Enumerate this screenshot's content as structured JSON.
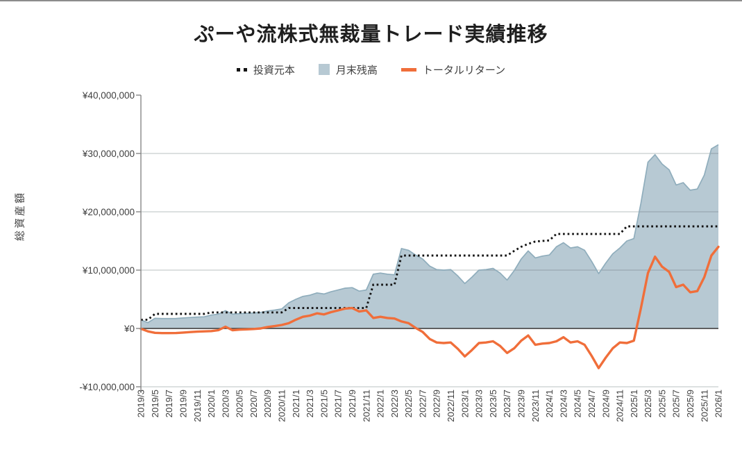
{
  "chart_data": {
    "type": "combo",
    "title": "ぷーや流株式無裁量トレード実績推移",
    "y_axis_label": "総資産額",
    "currency": "JPY",
    "ylim": [
      -10000000,
      40000000
    ],
    "y_ticks": [
      {
        "label": "¥40,000,000",
        "value": 40000000
      },
      {
        "label": "¥30,000,000",
        "value": 30000000
      },
      {
        "label": "¥20,000,000",
        "value": 20000000
      },
      {
        "label": "¥10,000,000",
        "value": 10000000
      },
      {
        "label": "¥0",
        "value": 0
      },
      {
        "label": "-¥10,000,000",
        "value": -10000000
      }
    ],
    "x_tick_every": 2,
    "x_tick_labels": [
      "2019/3",
      "2019/5",
      "2019/7",
      "2019/9",
      "2019/11",
      "2020/1",
      "2020/3",
      "2020/5",
      "2020/7",
      "2020/9",
      "2020/11",
      "2021/1",
      "2021/3",
      "2021/5",
      "2021/7",
      "2021/9",
      "2021/11",
      "2022/1",
      "2022/3",
      "2022/5",
      "2022/7",
      "2022/9",
      "2022/11",
      "2023/1",
      "2023/3",
      "2023/5",
      "2023/7",
      "2023/9",
      "2023/11",
      "2024/1",
      "2024/3",
      "2024/5",
      "2024/7",
      "2024/9",
      "2024/11",
      "2025/1",
      "2025/3",
      "2025/5",
      "2025/7",
      "2025/9",
      "2025/11",
      "2026/1"
    ],
    "x": [
      "2019/3",
      "2019/4",
      "2019/5",
      "2019/6",
      "2019/7",
      "2019/8",
      "2019/9",
      "2019/10",
      "2019/11",
      "2019/12",
      "2020/1",
      "2020/2",
      "2020/3",
      "2020/4",
      "2020/5",
      "2020/6",
      "2020/7",
      "2020/8",
      "2020/9",
      "2020/10",
      "2020/11",
      "2020/12",
      "2021/1",
      "2021/2",
      "2021/3",
      "2021/4",
      "2021/5",
      "2021/6",
      "2021/7",
      "2021/8",
      "2021/9",
      "2021/10",
      "2021/11",
      "2021/12",
      "2022/1",
      "2022/2",
      "2022/3",
      "2022/4",
      "2022/5",
      "2022/6",
      "2022/7",
      "2022/8",
      "2022/9",
      "2022/10",
      "2022/11",
      "2022/12",
      "2023/1",
      "2023/2",
      "2023/3",
      "2023/4",
      "2023/5",
      "2023/6",
      "2023/7",
      "2023/8",
      "2023/9",
      "2023/10",
      "2023/11",
      "2023/12",
      "2024/1",
      "2024/2",
      "2024/3",
      "2024/4",
      "2024/5",
      "2024/6",
      "2024/7",
      "2024/8",
      "2024/9",
      "2024/10",
      "2024/11",
      "2024/12",
      "2025/1",
      "2025/2",
      "2025/3",
      "2025/4",
      "2025/5",
      "2025/6",
      "2025/7",
      "2025/8",
      "2025/9",
      "2025/10",
      "2025/11",
      "2025/12",
      "2026/1"
    ],
    "series": [
      {
        "name": "投資元本",
        "type": "line",
        "style": "dotted",
        "color": "#141414",
        "values": [
          1500000,
          1500000,
          2500000,
          2500000,
          2500000,
          2500000,
          2500000,
          2500000,
          2500000,
          2500000,
          2750000,
          2750000,
          2750000,
          2750000,
          2750000,
          2750000,
          2750000,
          2750000,
          2750000,
          2750000,
          2750000,
          3500000,
          3500000,
          3500000,
          3500000,
          3500000,
          3500000,
          3500000,
          3500000,
          3500000,
          3500000,
          3500000,
          3500000,
          7500000,
          7500000,
          7500000,
          7500000,
          12500000,
          12500000,
          12500000,
          12500000,
          12500000,
          12500000,
          12500000,
          12500000,
          12500000,
          12500000,
          12500000,
          12500000,
          12500000,
          12500000,
          12500000,
          12500000,
          13300000,
          14000000,
          14500000,
          14900000,
          15000000,
          15100000,
          16200000,
          16200000,
          16200000,
          16200000,
          16200000,
          16200000,
          16200000,
          16200000,
          16200000,
          16200000,
          17500000,
          17500000,
          17500000,
          17500000,
          17500000,
          17500000,
          17500000,
          17500000,
          17500000,
          17500000,
          17500000,
          17500000,
          17500000,
          17500000
        ]
      },
      {
        "name": "月末残高",
        "type": "area",
        "color": "#b7c9d3",
        "line_color": "#8fadbc",
        "values": [
          1450000,
          1000000,
          1750000,
          1700000,
          1700000,
          1720000,
          1800000,
          1880000,
          1950000,
          2000000,
          2300000,
          2450000,
          3050000,
          2450000,
          2550000,
          2600000,
          2650000,
          2750000,
          3000000,
          3150000,
          3350000,
          4400000,
          5000000,
          5500000,
          5700000,
          6100000,
          5900000,
          6300000,
          6600000,
          6900000,
          7000000,
          6400000,
          6600000,
          9300000,
          9500000,
          9300000,
          9200000,
          13700000,
          13400000,
          12600000,
          11900000,
          10700000,
          10100000,
          10000000,
          10100000,
          9000000,
          7700000,
          8800000,
          10000000,
          10100000,
          10300000,
          9500000,
          8300000,
          9900000,
          11900000,
          13300000,
          12100000,
          12400000,
          12600000,
          14000000,
          14700000,
          13800000,
          14000000,
          13400000,
          11500000,
          9400000,
          11200000,
          12800000,
          13800000,
          15000000,
          15400000,
          21500000,
          28500000,
          29800000,
          28200000,
          27200000,
          24600000,
          25000000,
          23700000,
          23900000,
          26300000,
          30800000,
          31500000
        ]
      },
      {
        "name": "トータルリターン",
        "type": "line",
        "style": "solid",
        "color": "#f06e3a",
        "values": [
          -50000,
          -500000,
          -750000,
          -800000,
          -800000,
          -780000,
          -700000,
          -620000,
          -550000,
          -500000,
          -450000,
          -300000,
          300000,
          -300000,
          -200000,
          -150000,
          -100000,
          0,
          250000,
          400000,
          600000,
          900000,
          1500000,
          2000000,
          2200000,
          2600000,
          2400000,
          2800000,
          3100000,
          3400000,
          3500000,
          2900000,
          3100000,
          1800000,
          2000000,
          1800000,
          1700000,
          1200000,
          900000,
          100000,
          -600000,
          -1800000,
          -2400000,
          -2500000,
          -2400000,
          -3500000,
          -4800000,
          -3700000,
          -2500000,
          -2400000,
          -2200000,
          -3000000,
          -4200000,
          -3400000,
          -2100000,
          -1200000,
          -2800000,
          -2600000,
          -2500000,
          -2200000,
          -1500000,
          -2400000,
          -2200000,
          -2800000,
          -4700000,
          -6800000,
          -5000000,
          -3400000,
          -2400000,
          -2500000,
          -2100000,
          3500000,
          9500000,
          12300000,
          10600000,
          9700000,
          7100000,
          7500000,
          6200000,
          6400000,
          8800000,
          12500000,
          14000000
        ]
      }
    ],
    "legend_position": "top",
    "grid": true
  },
  "legend": {
    "items": [
      {
        "label": "投資元本",
        "marker": "dotted-squares",
        "color": "#141414"
      },
      {
        "label": "月末残高",
        "marker": "square",
        "color": "#b7c9d3"
      },
      {
        "label": "トータルリターン",
        "marker": "line",
        "color": "#f06e3a"
      }
    ]
  },
  "colors": {
    "area_fill": "#b7c9d3",
    "area_line": "#8fadbc",
    "principal_line": "#141414",
    "return_line": "#f06e3a",
    "zero_axis": "#4d4d4d",
    "gridline": "#c9ced1",
    "axis": "#858585",
    "text": "#3f3f3f"
  }
}
